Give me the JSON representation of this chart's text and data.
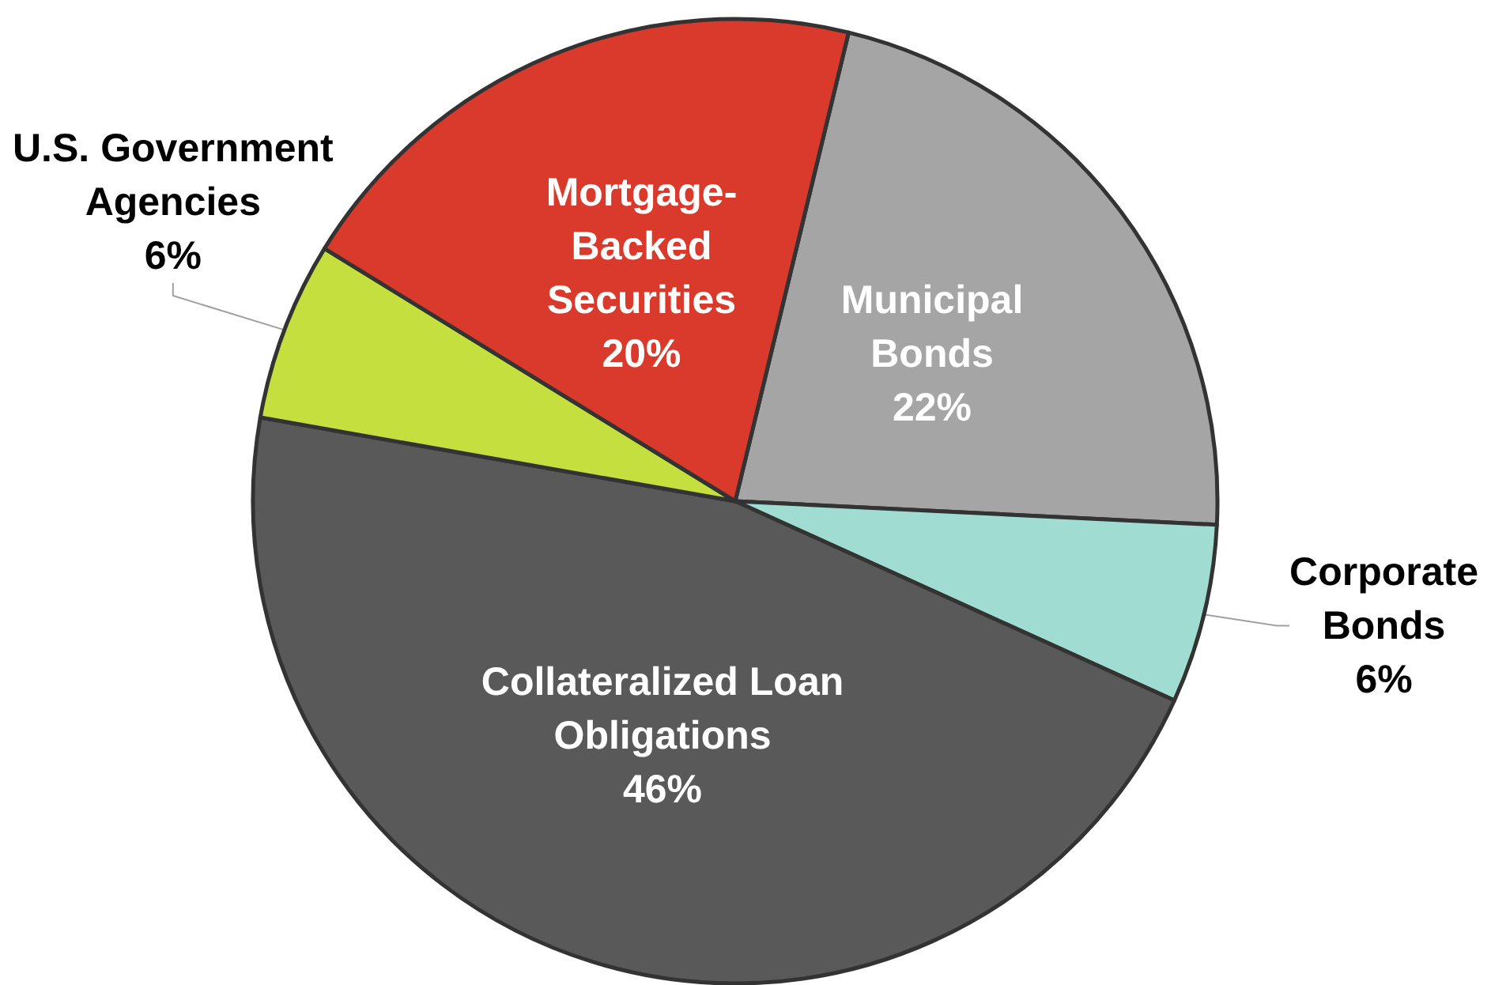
{
  "chart_data": {
    "type": "pie",
    "categories": [
      "Municipal\nBonds",
      "Corporate\nBonds",
      "Collateralized Loan\nObligations",
      "U.S. Government\nAgencies",
      "Mortgage-\nBacked\nSecurities"
    ],
    "values": [
      22,
      6,
      46,
      6,
      20
    ],
    "value_labels": [
      "22%",
      "6%",
      "46%",
      "6%",
      "20%"
    ],
    "colors": [
      "#a5a5a5",
      "#a0dcd2",
      "#595959",
      "#c5e03e",
      "#d93a2b"
    ],
    "legend": false
  }
}
